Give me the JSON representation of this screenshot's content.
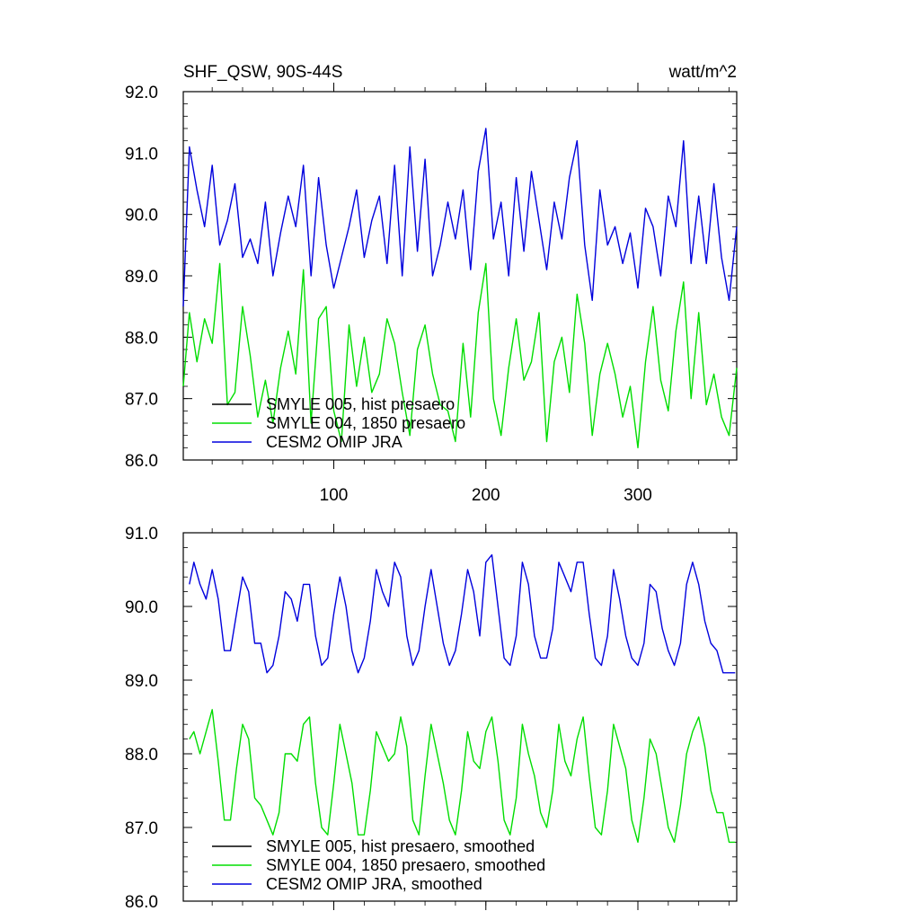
{
  "chart_data": [
    {
      "type": "line",
      "title": "SHF_QSW, 90S-44S",
      "units_label": "watt/m^2",
      "xlabel": "",
      "ylabel": "",
      "xlim": [
        1,
        365
      ],
      "ylim": [
        86.0,
        92.0
      ],
      "xticks": [
        100,
        200,
        300
      ],
      "xtick_labels": [
        "100",
        "200",
        "300"
      ],
      "yticks": [
        86.0,
        87.0,
        88.0,
        89.0,
        90.0,
        91.0,
        92.0
      ],
      "ytick_labels": [
        "86.0",
        "87.0",
        "88.0",
        "89.0",
        "90.0",
        "91.0",
        "92.0"
      ],
      "legend_position": "bottom-left",
      "series": [
        {
          "name": "SMYLE 005, hist presaero",
          "color": "#000000",
          "x": [],
          "values": []
        },
        {
          "name": "SMYLE 004, 1850 presaero",
          "color": "#00dd00",
          "x": [
            1,
            5,
            10,
            15,
            20,
            25,
            30,
            35,
            40,
            45,
            50,
            55,
            60,
            65,
            70,
            75,
            80,
            85,
            90,
            95,
            100,
            105,
            110,
            115,
            120,
            125,
            130,
            135,
            140,
            145,
            150,
            155,
            160,
            165,
            170,
            175,
            180,
            185,
            190,
            195,
            200,
            205,
            210,
            215,
            220,
            225,
            230,
            235,
            240,
            245,
            250,
            255,
            260,
            265,
            270,
            275,
            280,
            285,
            290,
            295,
            300,
            305,
            310,
            315,
            320,
            325,
            330,
            335,
            340,
            345,
            350,
            355,
            360,
            365
          ],
          "values": [
            87.2,
            88.4,
            87.6,
            88.3,
            87.9,
            89.2,
            86.9,
            87.1,
            88.5,
            87.7,
            86.7,
            87.3,
            86.6,
            87.5,
            88.1,
            87.4,
            89.1,
            86.6,
            88.3,
            88.5,
            86.8,
            86.3,
            88.2,
            87.2,
            88.0,
            87.1,
            87.4,
            88.3,
            87.9,
            87.1,
            86.4,
            87.8,
            88.2,
            87.4,
            86.9,
            86.8,
            86.3,
            87.9,
            86.7,
            88.4,
            89.2,
            87.0,
            86.4,
            87.5,
            88.3,
            87.3,
            87.6,
            88.4,
            86.3,
            87.6,
            88.0,
            87.1,
            88.7,
            87.9,
            86.4,
            87.4,
            87.9,
            87.4,
            86.7,
            87.2,
            86.2,
            87.6,
            88.5,
            87.3,
            86.8,
            88.1,
            88.9,
            87.0,
            88.4,
            86.9,
            87.4,
            86.7,
            86.4,
            87.5
          ]
        },
        {
          "name": "CESM2 OMIP JRA",
          "color": "#0000dd",
          "x": [
            1,
            5,
            10,
            15,
            20,
            25,
            30,
            35,
            40,
            45,
            50,
            55,
            60,
            65,
            70,
            75,
            80,
            85,
            90,
            95,
            100,
            105,
            110,
            115,
            120,
            125,
            130,
            135,
            140,
            145,
            150,
            155,
            160,
            165,
            170,
            175,
            180,
            185,
            190,
            195,
            200,
            205,
            210,
            215,
            220,
            225,
            230,
            235,
            240,
            245,
            250,
            255,
            260,
            265,
            270,
            275,
            280,
            285,
            290,
            295,
            300,
            305,
            310,
            315,
            320,
            325,
            330,
            335,
            340,
            345,
            350,
            355,
            360,
            365
          ],
          "values": [
            88.5,
            91.1,
            90.4,
            89.8,
            90.8,
            89.5,
            89.9,
            90.5,
            89.3,
            89.6,
            89.2,
            90.2,
            89.0,
            89.7,
            90.3,
            89.8,
            90.8,
            89.0,
            90.6,
            89.5,
            88.8,
            89.3,
            89.8,
            90.4,
            89.3,
            89.9,
            90.3,
            89.2,
            90.8,
            89.0,
            91.1,
            89.4,
            90.9,
            89.0,
            89.5,
            90.2,
            89.6,
            90.4,
            89.1,
            90.7,
            91.4,
            89.6,
            90.2,
            89.0,
            90.6,
            89.4,
            90.7,
            89.9,
            89.1,
            90.2,
            89.6,
            90.6,
            91.2,
            89.5,
            88.6,
            90.4,
            89.5,
            89.8,
            89.2,
            89.7,
            88.8,
            90.1,
            89.8,
            89.0,
            90.3,
            89.8,
            91.2,
            89.2,
            90.3,
            89.2,
            90.5,
            89.3,
            88.6,
            89.8
          ]
        }
      ]
    },
    {
      "type": "line",
      "title": "",
      "xlabel": "",
      "ylabel": "",
      "xlim": [
        1,
        365
      ],
      "ylim": [
        86.0,
        91.0
      ],
      "xticks": [
        100,
        200,
        300
      ],
      "xtick_labels": [
        "",
        "",
        ""
      ],
      "yticks": [
        86.0,
        87.0,
        88.0,
        89.0,
        90.0,
        91.0
      ],
      "ytick_labels": [
        "86.0",
        "87.0",
        "88.0",
        "89.0",
        "90.0",
        "91.0"
      ],
      "legend_position": "bottom-left",
      "series": [
        {
          "name": "SMYLE 005, hist presaero, smoothed",
          "color": "#000000",
          "x": [],
          "values": []
        },
        {
          "name": "SMYLE 004, 1850 presaero, smoothed",
          "color": "#00dd00",
          "x": [
            5,
            8,
            12,
            16,
            20,
            24,
            28,
            32,
            36,
            40,
            44,
            48,
            52,
            56,
            60,
            64,
            68,
            72,
            76,
            80,
            84,
            88,
            92,
            96,
            100,
            104,
            108,
            112,
            116,
            120,
            124,
            128,
            132,
            136,
            140,
            144,
            148,
            152,
            156,
            160,
            164,
            168,
            172,
            176,
            180,
            184,
            188,
            192,
            196,
            200,
            204,
            208,
            212,
            216,
            220,
            224,
            228,
            232,
            236,
            240,
            244,
            248,
            252,
            256,
            260,
            264,
            268,
            272,
            276,
            280,
            284,
            288,
            292,
            296,
            300,
            304,
            308,
            312,
            316,
            320,
            324,
            328,
            332,
            336,
            340,
            344,
            348,
            352,
            356,
            360,
            364
          ],
          "values": [
            88.2,
            88.3,
            88.0,
            88.3,
            88.6,
            87.9,
            87.1,
            87.1,
            87.8,
            88.4,
            88.2,
            87.4,
            87.3,
            87.1,
            86.9,
            87.2,
            88.0,
            88.0,
            87.9,
            88.4,
            88.5,
            87.6,
            87.0,
            86.9,
            87.6,
            88.4,
            88.0,
            87.6,
            86.9,
            86.9,
            87.5,
            88.3,
            88.1,
            87.9,
            88.0,
            88.5,
            88.1,
            87.1,
            86.9,
            87.7,
            88.4,
            88.0,
            87.6,
            87.1,
            86.9,
            87.5,
            88.3,
            87.9,
            87.8,
            88.3,
            88.5,
            87.9,
            87.1,
            86.9,
            87.4,
            88.4,
            88.0,
            87.7,
            87.2,
            87.0,
            87.5,
            88.4,
            87.9,
            87.7,
            88.2,
            88.5,
            87.7,
            87.0,
            86.9,
            87.5,
            88.4,
            88.1,
            87.8,
            87.1,
            86.8,
            87.4,
            88.2,
            88.0,
            87.5,
            87.0,
            86.8,
            87.3,
            88.0,
            88.3,
            88.5,
            88.1,
            87.5,
            87.2,
            87.2,
            86.8,
            86.8
          ]
        },
        {
          "name": "CESM2 OMIP JRA, smoothed",
          "color": "#0000dd",
          "x": [
            5,
            8,
            12,
            16,
            20,
            24,
            28,
            32,
            36,
            40,
            44,
            48,
            52,
            56,
            60,
            64,
            68,
            72,
            76,
            80,
            84,
            88,
            92,
            96,
            100,
            104,
            108,
            112,
            116,
            120,
            124,
            128,
            132,
            136,
            140,
            144,
            148,
            152,
            156,
            160,
            164,
            168,
            172,
            176,
            180,
            184,
            188,
            192,
            196,
            200,
            204,
            208,
            212,
            216,
            220,
            224,
            228,
            232,
            236,
            240,
            244,
            248,
            252,
            256,
            260,
            264,
            268,
            272,
            276,
            280,
            284,
            288,
            292,
            296,
            300,
            304,
            308,
            312,
            316,
            320,
            324,
            328,
            332,
            336,
            340,
            344,
            348,
            352,
            356,
            360,
            364
          ],
          "values": [
            90.3,
            90.6,
            90.3,
            90.1,
            90.5,
            90.1,
            89.4,
            89.4,
            89.9,
            90.4,
            90.2,
            89.5,
            89.5,
            89.1,
            89.2,
            89.6,
            90.2,
            90.1,
            89.8,
            90.3,
            90.3,
            89.6,
            89.2,
            89.3,
            89.9,
            90.4,
            90.0,
            89.4,
            89.1,
            89.3,
            89.8,
            90.5,
            90.2,
            90.0,
            90.6,
            90.4,
            89.6,
            89.2,
            89.4,
            90.0,
            90.5,
            90.0,
            89.5,
            89.2,
            89.4,
            89.9,
            90.5,
            90.2,
            89.6,
            90.6,
            90.7,
            90.0,
            89.3,
            89.2,
            89.6,
            90.6,
            90.3,
            89.6,
            89.3,
            89.3,
            89.7,
            90.6,
            90.4,
            90.2,
            90.6,
            90.6,
            89.9,
            89.3,
            89.2,
            89.6,
            90.5,
            90.1,
            89.6,
            89.3,
            89.2,
            89.5,
            90.3,
            90.2,
            89.7,
            89.4,
            89.2,
            89.5,
            90.3,
            90.6,
            90.3,
            89.8,
            89.5,
            89.4,
            89.1,
            89.1,
            89.1
          ]
        }
      ]
    }
  ]
}
